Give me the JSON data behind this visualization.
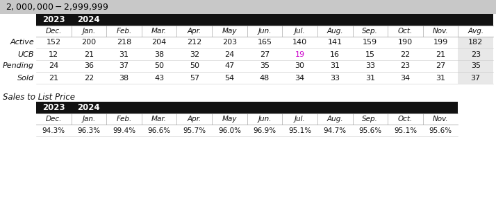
{
  "title": "$2,000,000 - $2,999,999",
  "title_bg": "#c8c8c8",
  "header_bg": "#111111",
  "header_text_color": "#ffffff",
  "avg_bg": "#e8e8e8",
  "row_label_color": "#111111",
  "data_color": "#111111",
  "col_header_text": "#111111",
  "ucb_jul_color": "#cc00cc",
  "col_headers": [
    "Dec.",
    "Jan.",
    "Feb.",
    "Mar.",
    "Apr.",
    "May",
    "Jun.",
    "Jul.",
    "Aug.",
    "Sep.",
    "Oct.",
    "Nov.",
    "Avg."
  ],
  "row_labels": [
    "Active",
    "UCB",
    "Pending",
    "Sold"
  ],
  "table_data": [
    [
      152,
      200,
      218,
      204,
      212,
      203,
      165,
      140,
      141,
      159,
      190,
      199,
      182
    ],
    [
      12,
      21,
      31,
      38,
      32,
      24,
      27,
      19,
      16,
      15,
      22,
      21,
      23
    ],
    [
      24,
      36,
      37,
      50,
      50,
      47,
      35,
      30,
      31,
      33,
      23,
      27,
      35
    ],
    [
      21,
      22,
      38,
      43,
      57,
      54,
      48,
      34,
      33,
      31,
      34,
      31,
      37
    ]
  ],
  "sales_title": "Sales to List Price",
  "sales_col_headers": [
    "Dec.",
    "Jan.",
    "Feb.",
    "Mar.",
    "Apr.",
    "May",
    "Jun.",
    "Jul.",
    "Aug.",
    "Sep.",
    "Oct.",
    "Nov."
  ],
  "sales_data": [
    "94.3%",
    "96.3%",
    "99.4%",
    "96.6%",
    "95.7%",
    "96.0%",
    "96.9%",
    "95.1%",
    "94.7%",
    "95.6%",
    "95.1%",
    "95.6%"
  ],
  "background_color": "#ffffff",
  "separator_color": "#aaaaaa",
  "row_line_color": "#cccccc"
}
